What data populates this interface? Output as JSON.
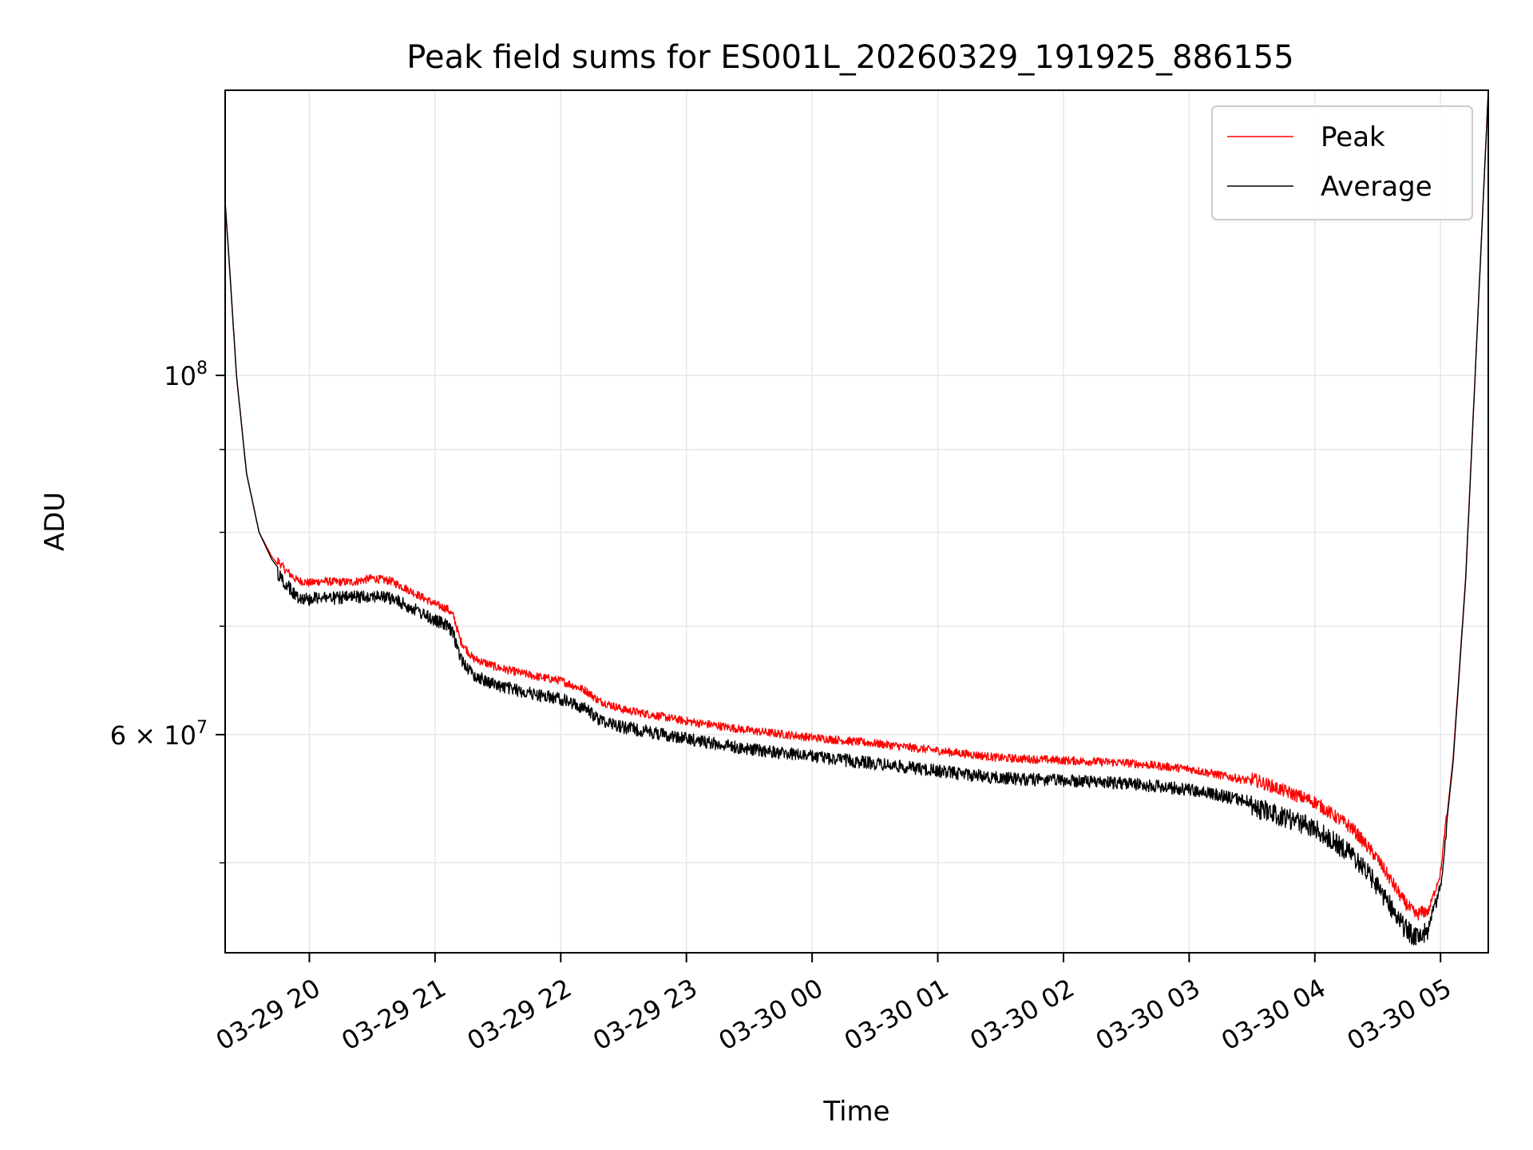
{
  "chart_data": {
    "type": "line",
    "title": "Peak field sums for ES001L_20260329_191925_886155",
    "xlabel": "Time",
    "ylabel": "ADU",
    "yscale": "log",
    "grid": true,
    "legend_position": "top-right",
    "xlim": [
      19.33,
      29.38
    ],
    "ylim": [
      44000000,
      150000000
    ],
    "x_ticks": [
      {
        "value": 20,
        "label": "03-29 20"
      },
      {
        "value": 21,
        "label": "03-29 21"
      },
      {
        "value": 22,
        "label": "03-29 22"
      },
      {
        "value": 23,
        "label": "03-29 23"
      },
      {
        "value": 24,
        "label": "03-30 00"
      },
      {
        "value": 25,
        "label": "03-30 01"
      },
      {
        "value": 26,
        "label": "03-30 02"
      },
      {
        "value": 27,
        "label": "03-30 03"
      },
      {
        "value": 28,
        "label": "03-30 04"
      },
      {
        "value": 29,
        "label": "03-30 05"
      }
    ],
    "y_major_ticks": [
      {
        "value": 100000000,
        "base": "10",
        "exp": "8"
      },
      {
        "value": 60000000,
        "base": "6 × 10",
        "exp": "7"
      }
    ],
    "y_minor_ticks": [
      50000000,
      70000000,
      80000000,
      90000000
    ],
    "series": [
      {
        "name": "Peak",
        "color": "#ff0000",
        "noise": 0.012,
        "x": [
          19.33,
          19.37,
          19.42,
          19.5,
          19.6,
          19.7,
          19.8,
          19.9,
          20.0,
          20.1,
          20.2,
          20.35,
          20.5,
          20.65,
          20.8,
          21.0,
          21.1,
          21.15,
          21.2,
          21.3,
          21.5,
          21.8,
          22.0,
          22.2,
          22.3,
          22.5,
          23.0,
          23.5,
          24.0,
          24.5,
          25.0,
          25.5,
          26.0,
          26.5,
          27.0,
          27.5,
          28.0,
          28.3,
          28.5,
          28.7,
          28.8,
          28.9,
          29.0,
          29.1,
          29.2,
          29.3,
          29.38
        ],
        "y": [
          128000000,
          115000000,
          100000000,
          87000000,
          80000000,
          77300000,
          75500000,
          74300000,
          74000000,
          74200000,
          74100000,
          74100000,
          74500000,
          74200000,
          73200000,
          71800000,
          71300000,
          70500000,
          68200000,
          66500000,
          65600000,
          64800000,
          64400000,
          63500000,
          62600000,
          61800000,
          60800000,
          60000000,
          59400000,
          58900000,
          58300000,
          57700000,
          57500000,
          57300000,
          56800000,
          55800000,
          54000000,
          52000000,
          49800000,
          47000000,
          46000000,
          46300000,
          49000000,
          58000000,
          75000000,
          110000000,
          150000000
        ]
      },
      {
        "name": "Average",
        "color": "#000000",
        "noise": 0.018,
        "x": [
          19.33,
          19.37,
          19.42,
          19.5,
          19.6,
          19.7,
          19.8,
          19.9,
          20.0,
          20.1,
          20.2,
          20.35,
          20.5,
          20.65,
          20.8,
          21.0,
          21.1,
          21.15,
          21.2,
          21.3,
          21.5,
          21.8,
          22.0,
          22.2,
          22.3,
          22.5,
          23.0,
          23.5,
          24.0,
          24.5,
          25.0,
          25.5,
          26.0,
          26.5,
          27.0,
          27.5,
          28.0,
          28.3,
          28.5,
          28.7,
          28.8,
          28.9,
          29.0,
          29.1,
          29.2,
          29.3,
          29.38
        ],
        "y": [
          128000000,
          115000000,
          100000000,
          87000000,
          80000000,
          77000000,
          75200000,
          73700000,
          73400000,
          73700000,
          73500000,
          73600000,
          73800000,
          73500000,
          72600000,
          71200000,
          70700000,
          69700000,
          67600000,
          65900000,
          64900000,
          64100000,
          63700000,
          62800000,
          61900000,
          61200000,
          60200000,
          59300000,
          58700000,
          58100000,
          57500000,
          56900000,
          56700000,
          56500000,
          56000000,
          55000000,
          53300000,
          51300000,
          49100000,
          46400000,
          45600000,
          46000000,
          48700000,
          57700000,
          74800000,
          110000000,
          150000000
        ]
      }
    ]
  }
}
